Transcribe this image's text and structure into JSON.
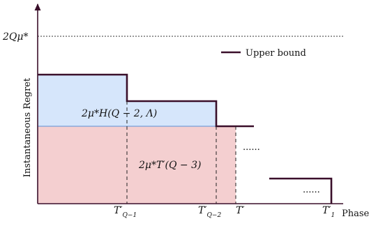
{
  "y_axis_label": "Instantaneous Regret",
  "x_axis_label": "Phase",
  "y_tick_label": "2Qμ*",
  "legend": {
    "label": "Upper bound",
    "color": "#3a0f2a"
  },
  "regions": {
    "top_label": "2μ*H(Q − 2, Λ)",
    "bottom_label": "2μ*T′(Q − 3)",
    "top_color": "#d6e6fb",
    "bottom_color": "#f4cfd0"
  },
  "x_ticks": [
    {
      "base": "T′",
      "sub": "Q−1"
    },
    {
      "base": "T′",
      "sub": "Q−2"
    },
    {
      "base": "T′",
      "sub": ""
    },
    {
      "base": "T′",
      "sub": "1"
    }
  ],
  "ellipses": [
    "......",
    "......"
  ],
  "colors": {
    "axis": "#3a0f2a",
    "upper_bound": "#3a0f2a",
    "divider": "#5b8fd6"
  }
}
